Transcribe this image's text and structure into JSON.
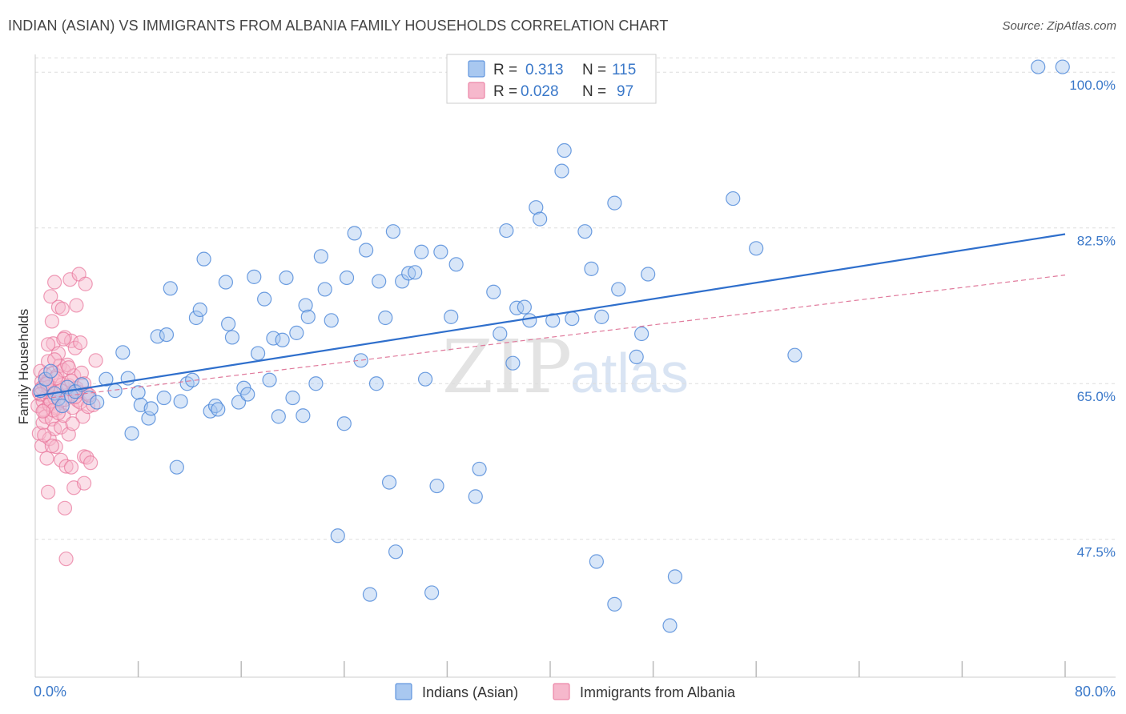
{
  "header": {
    "title": "INDIAN (ASIAN) VS IMMIGRANTS FROM ALBANIA FAMILY HOUSEHOLDS CORRELATION CHART",
    "source": "Source: ZipAtlas.com"
  },
  "watermark": {
    "zip": "ZIP",
    "atlas": "atlas"
  },
  "colors": {
    "blue": "#4a86d8",
    "blue_fill": "#a9c8f0",
    "blue_line": "#2f6fcc",
    "pink": "#e8739a",
    "pink_fill": "#f6b8cc",
    "pink_line": "#e07a9c",
    "grid": "#dddddd"
  },
  "legend": {
    "rows": [
      {
        "r_label": "R =",
        "r_value": "0.313",
        "n_label": "N =",
        "n_value": "115"
      },
      {
        "r_label": "R =",
        "r_value": "0.028",
        "n_label": "N =",
        "n_value": "97"
      }
    ]
  },
  "chart_data": {
    "type": "scatter",
    "title": "INDIAN (ASIAN) VS IMMIGRANTS FROM ALBANIA FAMILY HOUSEHOLDS CORRELATION CHART",
    "xlabel": "",
    "ylabel": "Family Households",
    "xlim": [
      0,
      80
    ],
    "ylim": [
      32,
      102
    ],
    "x_tick_labels": [
      "0.0%",
      "80.0%"
    ],
    "y_ticks": [
      47.5,
      65.0,
      82.5,
      100.0
    ],
    "y_tick_labels": [
      "47.5%",
      "65.0%",
      "82.5%",
      "100.0%"
    ],
    "legend_position": "top-center",
    "series": [
      {
        "name": "Indians (Asian)",
        "R": 0.313,
        "N": 115,
        "trend": {
          "x": [
            0,
            80
          ],
          "y": [
            63.6,
            81.8
          ],
          "style": "solid"
        },
        "points": [
          [
            0.4,
            64.2
          ],
          [
            0.8,
            65.5
          ],
          [
            1.2,
            66.4
          ],
          [
            1.5,
            63.9
          ],
          [
            1.8,
            63.3
          ],
          [
            2.1,
            62.5
          ],
          [
            2.5,
            64.6
          ],
          [
            2.8,
            63.6
          ],
          [
            3.1,
            64.1
          ],
          [
            3.6,
            64.9
          ],
          [
            4.2,
            63.4
          ],
          [
            4.8,
            62.9
          ],
          [
            5.5,
            65.5
          ],
          [
            6.2,
            64.2
          ],
          [
            6.8,
            68.5
          ],
          [
            7.2,
            65.6
          ],
          [
            7.5,
            59.4
          ],
          [
            8.0,
            64.0
          ],
          [
            8.2,
            62.6
          ],
          [
            8.8,
            61.1
          ],
          [
            9.0,
            62.2
          ],
          [
            9.5,
            70.3
          ],
          [
            10.0,
            63.4
          ],
          [
            10.2,
            70.5
          ],
          [
            10.5,
            75.7
          ],
          [
            11.0,
            55.6
          ],
          [
            11.3,
            63.0
          ],
          [
            11.8,
            65.0
          ],
          [
            12.2,
            65.4
          ],
          [
            12.5,
            72.4
          ],
          [
            12.8,
            73.3
          ],
          [
            13.1,
            79.0
          ],
          [
            13.6,
            61.9
          ],
          [
            14.0,
            62.5
          ],
          [
            14.2,
            62.1
          ],
          [
            14.8,
            76.4
          ],
          [
            15.0,
            71.7
          ],
          [
            15.3,
            70.2
          ],
          [
            15.8,
            62.9
          ],
          [
            16.2,
            64.5
          ],
          [
            16.5,
            63.8
          ],
          [
            17.0,
            77.0
          ],
          [
            17.3,
            68.4
          ],
          [
            17.8,
            74.5
          ],
          [
            18.2,
            65.4
          ],
          [
            18.5,
            70.1
          ],
          [
            18.9,
            61.3
          ],
          [
            19.2,
            69.9
          ],
          [
            19.5,
            76.9
          ],
          [
            20.0,
            63.4
          ],
          [
            20.3,
            70.7
          ],
          [
            20.8,
            61.4
          ],
          [
            21.0,
            73.8
          ],
          [
            21.2,
            72.5
          ],
          [
            21.8,
            65.0
          ],
          [
            22.2,
            79.3
          ],
          [
            22.5,
            75.6
          ],
          [
            23.0,
            72.1
          ],
          [
            23.5,
            47.9
          ],
          [
            24.0,
            60.5
          ],
          [
            24.2,
            76.9
          ],
          [
            24.8,
            81.9
          ],
          [
            25.3,
            67.6
          ],
          [
            25.7,
            80.0
          ],
          [
            26.0,
            41.3
          ],
          [
            26.5,
            65.0
          ],
          [
            26.7,
            76.5
          ],
          [
            27.2,
            72.4
          ],
          [
            27.5,
            53.9
          ],
          [
            27.8,
            82.1
          ],
          [
            28.0,
            46.1
          ],
          [
            28.5,
            76.5
          ],
          [
            29.0,
            77.4
          ],
          [
            29.5,
            77.5
          ],
          [
            30.0,
            79.8
          ],
          [
            30.3,
            65.5
          ],
          [
            30.8,
            41.5
          ],
          [
            31.2,
            53.5
          ],
          [
            31.5,
            79.8
          ],
          [
            32.3,
            72.5
          ],
          [
            32.7,
            78.4
          ],
          [
            34.2,
            52.3
          ],
          [
            34.5,
            55.4
          ],
          [
            35.6,
            75.3
          ],
          [
            36.1,
            70.6
          ],
          [
            36.6,
            82.2
          ],
          [
            37.1,
            67.3
          ],
          [
            37.4,
            73.5
          ],
          [
            38.0,
            73.6
          ],
          [
            38.4,
            72.1
          ],
          [
            38.9,
            84.8
          ],
          [
            39.2,
            83.5
          ],
          [
            40.2,
            72.1
          ],
          [
            40.9,
            88.9
          ],
          [
            41.1,
            91.2
          ],
          [
            41.7,
            72.3
          ],
          [
            42.7,
            82.1
          ],
          [
            43.2,
            77.9
          ],
          [
            43.6,
            45.0
          ],
          [
            44.0,
            72.5
          ],
          [
            45.0,
            40.2
          ],
          [
            45.0,
            85.3
          ],
          [
            45.3,
            75.6
          ],
          [
            46.7,
            68.0
          ],
          [
            47.1,
            70.6
          ],
          [
            47.6,
            77.3
          ],
          [
            49.3,
            37.8
          ],
          [
            49.7,
            43.3
          ],
          [
            54.2,
            85.8
          ],
          [
            56.0,
            80.2
          ],
          [
            59.0,
            68.2
          ],
          [
            77.9,
            100.6
          ],
          [
            79.8,
            100.6
          ]
        ]
      },
      {
        "name": "Immigrants from Albania",
        "R": 0.028,
        "N": 97,
        "trend": {
          "x": [
            0,
            80
          ],
          "y": [
            63.2,
            77.2
          ],
          "style": "dashed"
        },
        "points": [
          [
            0.2,
            62.5
          ],
          [
            0.3,
            64.0
          ],
          [
            0.3,
            59.4
          ],
          [
            0.4,
            66.4
          ],
          [
            0.5,
            58.0
          ],
          [
            0.5,
            65.2
          ],
          [
            0.6,
            63.0
          ],
          [
            0.6,
            60.6
          ],
          [
            0.7,
            64.8
          ],
          [
            0.7,
            62.0
          ],
          [
            0.8,
            66.0
          ],
          [
            0.8,
            61.3
          ],
          [
            0.9,
            63.6
          ],
          [
            0.9,
            56.6
          ],
          [
            1.0,
            65.3
          ],
          [
            1.0,
            52.8
          ],
          [
            1.0,
            67.5
          ],
          [
            1.1,
            62.6
          ],
          [
            1.1,
            58.8
          ],
          [
            1.2,
            74.8
          ],
          [
            1.2,
            64.3
          ],
          [
            1.3,
            72.0
          ],
          [
            1.3,
            61.0
          ],
          [
            1.4,
            69.5
          ],
          [
            1.4,
            66.2
          ],
          [
            1.5,
            63.4
          ],
          [
            1.5,
            59.9
          ],
          [
            1.5,
            76.4
          ],
          [
            1.6,
            57.9
          ],
          [
            1.6,
            64.1
          ],
          [
            1.7,
            65.9
          ],
          [
            1.7,
            62.2
          ],
          [
            1.8,
            73.6
          ],
          [
            1.8,
            68.4
          ],
          [
            1.9,
            67.0
          ],
          [
            1.9,
            63.0
          ],
          [
            2.0,
            56.4
          ],
          [
            2.0,
            60.1
          ],
          [
            2.1,
            64.9
          ],
          [
            2.1,
            73.4
          ],
          [
            2.2,
            66.5
          ],
          [
            2.2,
            61.4
          ],
          [
            2.3,
            70.2
          ],
          [
            2.3,
            51.0
          ],
          [
            2.4,
            55.7
          ],
          [
            2.4,
            45.3
          ],
          [
            2.5,
            63.7
          ],
          [
            2.5,
            67.1
          ],
          [
            2.6,
            59.3
          ],
          [
            2.6,
            64.8
          ],
          [
            2.7,
            76.7
          ],
          [
            2.8,
            69.8
          ],
          [
            2.8,
            55.6
          ],
          [
            2.9,
            62.3
          ],
          [
            3.0,
            53.3
          ],
          [
            3.0,
            65.9
          ],
          [
            3.1,
            69.0
          ],
          [
            3.2,
            64.5
          ],
          [
            3.2,
            73.8
          ],
          [
            3.3,
            63.1
          ],
          [
            3.4,
            77.3
          ],
          [
            3.5,
            62.9
          ],
          [
            3.6,
            66.2
          ],
          [
            3.7,
            61.3
          ],
          [
            3.8,
            56.8
          ],
          [
            3.8,
            53.8
          ],
          [
            3.9,
            76.2
          ],
          [
            4.0,
            63.9
          ],
          [
            4.0,
            56.7
          ],
          [
            4.1,
            62.4
          ],
          [
            4.3,
            56.1
          ],
          [
            4.5,
            62.6
          ],
          [
            0.5,
            64.5
          ],
          [
            1.0,
            64.6
          ],
          [
            1.6,
            65.6
          ],
          [
            1.2,
            63.0
          ],
          [
            2.0,
            64.2
          ],
          [
            1.4,
            62.0
          ],
          [
            0.9,
            65.0
          ],
          [
            2.3,
            63.2
          ],
          [
            1.8,
            61.7
          ],
          [
            0.4,
            63.8
          ],
          [
            2.6,
            66.8
          ],
          [
            3.5,
            69.6
          ],
          [
            1.0,
            69.4
          ],
          [
            2.2,
            70.0
          ],
          [
            1.3,
            58.0
          ],
          [
            0.7,
            59.2
          ],
          [
            3.1,
            63.5
          ],
          [
            4.7,
            67.6
          ],
          [
            3.3,
            64.1
          ],
          [
            2.9,
            60.5
          ],
          [
            1.5,
            67.7
          ],
          [
            0.6,
            61.9
          ],
          [
            2.8,
            65.3
          ],
          [
            3.8,
            65.0
          ],
          [
            4.2,
            63.7
          ]
        ]
      }
    ]
  }
}
